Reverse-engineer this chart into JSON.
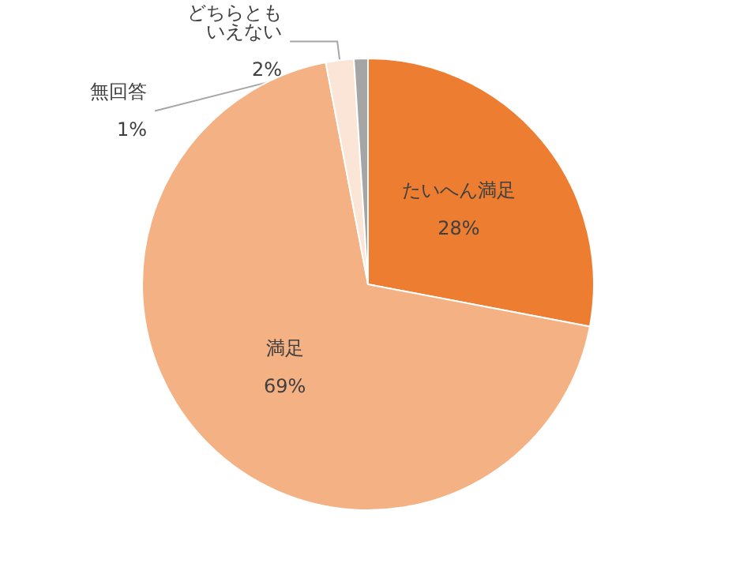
{
  "chart_data": {
    "type": "pie",
    "categories": [
      "たいへん満足",
      "満足",
      "どちらともいえない",
      "無回答"
    ],
    "values": [
      28,
      69,
      2,
      1
    ],
    "colors": [
      "#ed7d31",
      "#f4b183",
      "#fbe5d6",
      "#a5a5a5"
    ],
    "value_labels": [
      "28%",
      "69%",
      "2%",
      "1%"
    ],
    "legend": false
  }
}
